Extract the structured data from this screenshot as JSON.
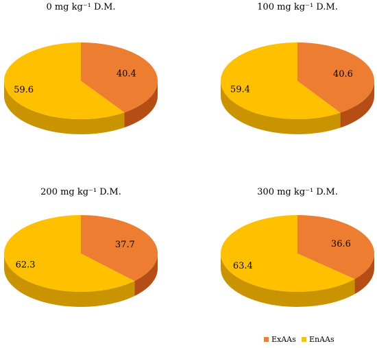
{
  "colors": {
    "ExAAs": "#ED7D31",
    "EnAAs": "#FFC000",
    "ExAAs_side": "#B54E14",
    "EnAAs_side": "#C99400"
  },
  "legend": [
    {
      "label": "ExAAs",
      "color": "#ED7D31"
    },
    {
      "label": "EnAAs",
      "color": "#FFC000"
    }
  ],
  "chart_data": [
    {
      "type": "pie",
      "title": "0 mg kg⁻¹ D.M.",
      "categories": [
        "ExAAs",
        "EnAAs"
      ],
      "values": [
        40.4,
        59.6
      ],
      "data_labels": [
        "40.4",
        "59.6"
      ]
    },
    {
      "type": "pie",
      "title": "100 mg kg⁻¹ D.M.",
      "categories": [
        "ExAAs",
        "EnAAs"
      ],
      "values": [
        40.6,
        59.4
      ],
      "data_labels": [
        "40.6",
        "59.4"
      ]
    },
    {
      "type": "pie",
      "title": "200 mg kg⁻¹ D.M.",
      "categories": [
        "ExAAs",
        "EnAAs"
      ],
      "values": [
        37.7,
        62.3
      ],
      "data_labels": [
        "37.7",
        "62.3"
      ]
    },
    {
      "type": "pie",
      "title": "300 mg kg⁻¹ D.M.",
      "categories": [
        "ExAAs",
        "EnAAs"
      ],
      "values": [
        36.6,
        63.4
      ],
      "data_labels": [
        "36.6",
        "63.4"
      ]
    }
  ]
}
